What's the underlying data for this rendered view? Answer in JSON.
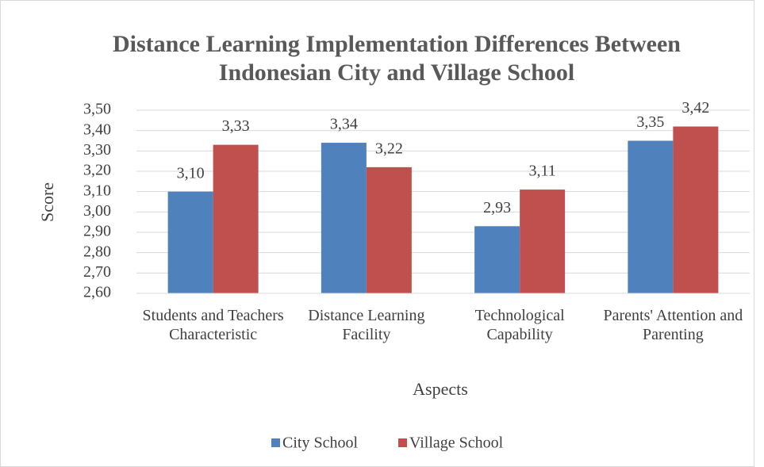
{
  "chart_data": {
    "type": "bar",
    "title": "Distance Learning Implementation Differences Between Indonesian City and Village School",
    "x_label": "Aspects",
    "y_label": "Score",
    "categories": [
      "Students and Teachers Characteristic",
      "Distance Learning Facility",
      "Technological Capability",
      "Parents' Attention and Parenting"
    ],
    "series": [
      {
        "name": "City School",
        "color": "#4f81bd",
        "values": [
          3.1,
          3.34,
          2.93,
          3.35
        ],
        "value_labels": [
          "3,10",
          "3,34",
          "2,93",
          "3,35"
        ]
      },
      {
        "name": "Village School",
        "color": "#c0504d",
        "values": [
          3.33,
          3.22,
          3.11,
          3.42
        ],
        "value_labels": [
          "3,33",
          "3,22",
          "3,11",
          "3,42"
        ]
      }
    ],
    "ylim": [
      2.6,
      3.5
    ],
    "yticks": [
      {
        "value": 2.6,
        "label": "2,60"
      },
      {
        "value": 2.7,
        "label": "2,70"
      },
      {
        "value": 2.8,
        "label": "2,80"
      },
      {
        "value": 2.9,
        "label": "2,90"
      },
      {
        "value": 3.0,
        "label": "3,00"
      },
      {
        "value": 3.1,
        "label": "3,10"
      },
      {
        "value": 3.2,
        "label": "3,20"
      },
      {
        "value": 3.3,
        "label": "3,30"
      },
      {
        "value": 3.4,
        "label": "3,40"
      },
      {
        "value": 3.5,
        "label": "3,50"
      }
    ],
    "grid": true,
    "legend": "bottom"
  }
}
